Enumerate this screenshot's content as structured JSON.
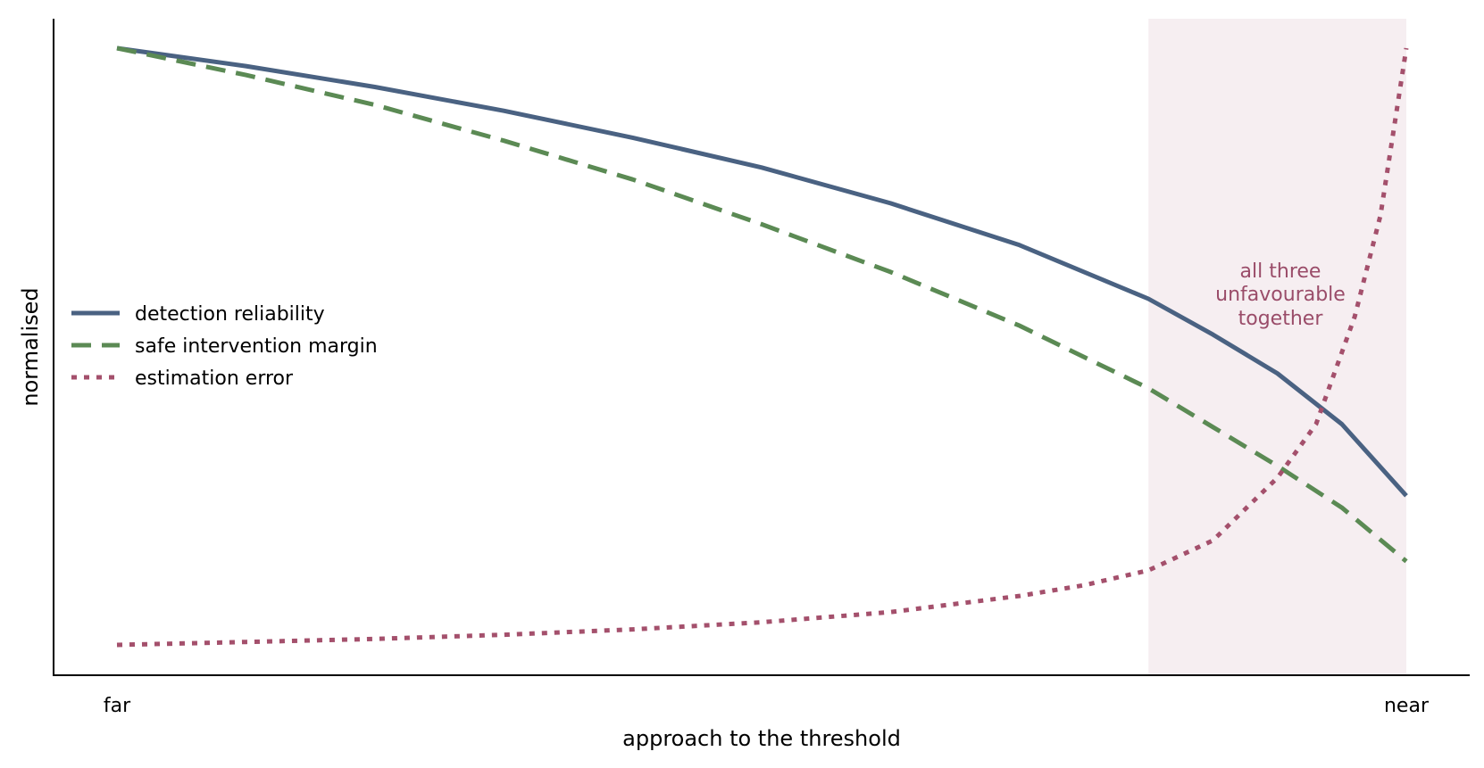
{
  "chart_data": {
    "type": "line",
    "title": "",
    "xlabel": "approach to the threshold",
    "ylabel": "normalised",
    "x_ticks": [
      "far",
      "near"
    ],
    "xlim": [
      0,
      1
    ],
    "ylim": [
      0,
      1
    ],
    "grid": false,
    "legend_position": "center-left",
    "series": [
      {
        "name": "detection reliability",
        "color": "#4a6282",
        "style": "solid",
        "x": [
          0,
          0.1,
          0.2,
          0.3,
          0.4,
          0.5,
          0.6,
          0.7,
          0.8,
          0.85,
          0.9,
          0.95,
          1.0
        ],
        "y": [
          1.0,
          0.97,
          0.935,
          0.895,
          0.85,
          0.8,
          0.74,
          0.67,
          0.58,
          0.52,
          0.455,
          0.37,
          0.25
        ]
      },
      {
        "name": "safe intervention margin",
        "color": "#5b8a54",
        "style": "dashed",
        "x": [
          0,
          0.1,
          0.2,
          0.3,
          0.4,
          0.5,
          0.6,
          0.7,
          0.8,
          0.85,
          0.9,
          0.95,
          1.0
        ],
        "y": [
          1.0,
          0.955,
          0.905,
          0.845,
          0.78,
          0.705,
          0.625,
          0.535,
          0.43,
          0.365,
          0.3,
          0.23,
          0.14
        ]
      },
      {
        "name": "estimation error",
        "color": "#a4506c",
        "style": "dotted",
        "x": [
          0,
          0.1,
          0.2,
          0.3,
          0.4,
          0.5,
          0.6,
          0.7,
          0.75,
          0.8,
          0.85,
          0.9,
          0.93,
          0.96,
          0.98,
          1.0
        ],
        "y": [
          0.0,
          0.005,
          0.01,
          0.017,
          0.026,
          0.038,
          0.055,
          0.082,
          0.1,
          0.125,
          0.175,
          0.28,
          0.37,
          0.55,
          0.72,
          1.0
        ]
      }
    ],
    "shaded_region": {
      "x_start": 0.8,
      "x_end": 1.0,
      "color": "#f6eef1"
    },
    "annotation": {
      "lines": [
        "all three",
        "unfavourable",
        "together"
      ],
      "color": "#9a4c69"
    }
  }
}
